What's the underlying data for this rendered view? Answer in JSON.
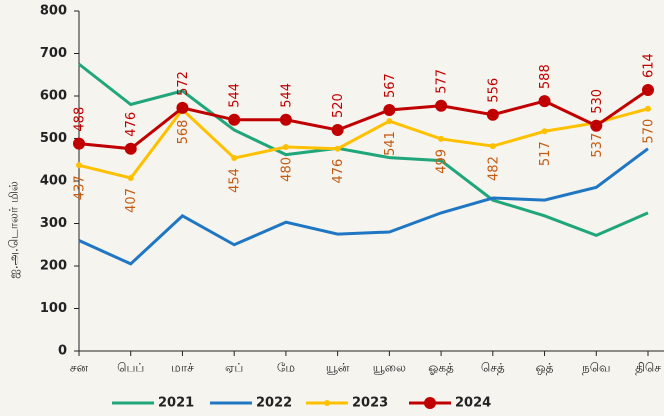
{
  "chart_data": {
    "type": "line",
    "y_label": "ஐ.அ.டொலர் மில்",
    "categories": [
      "சன",
      "பெப்",
      "மாச்",
      "ஏப்",
      "மே",
      "யூன்",
      "யூலை",
      "ஓகத்",
      "செத்",
      "ஒத்",
      "நவெ",
      "திசெ"
    ],
    "series": [
      {
        "name": "2021",
        "color": "#1fa67a",
        "values": [
          675,
          580,
          612,
          520,
          462,
          477,
          455,
          448,
          355,
          318,
          272,
          325
        ]
      },
      {
        "name": "2022",
        "color": "#1f77c4",
        "values": [
          260,
          205,
          318,
          250,
          303,
          275,
          280,
          325,
          360,
          355,
          385,
          476
        ]
      },
      {
        "name": "2023",
        "color": "#ffc000",
        "label_color": "#c55a11",
        "values": [
          437,
          407,
          568,
          454,
          480,
          476,
          541,
          499,
          482,
          517,
          537,
          570
        ]
      },
      {
        "name": "2024",
        "color": "#c00000",
        "label_color": "#c00000",
        "values": [
          488,
          476,
          572,
          544,
          544,
          520,
          567,
          577,
          556,
          588,
          530,
          614
        ]
      }
    ],
    "ylim": [
      0,
      800
    ],
    "yticks": [
      0,
      100,
      200,
      300,
      400,
      500,
      600,
      700,
      800
    ]
  }
}
